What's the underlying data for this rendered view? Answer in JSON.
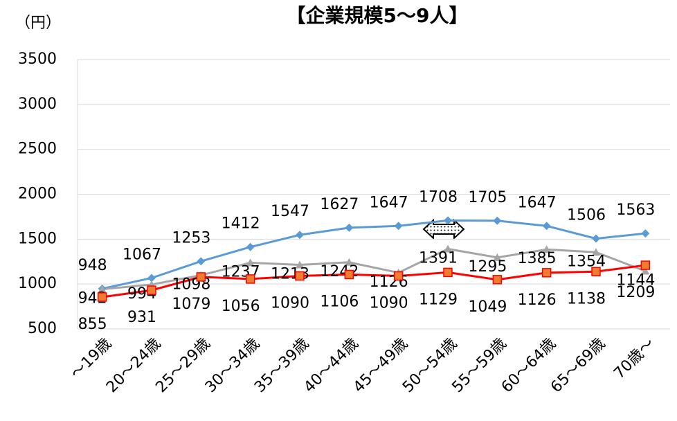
{
  "chart_data": {
    "type": "line",
    "title": "【企業規模5～9人】",
    "y_label": "（円）",
    "categories": [
      "～19歳",
      "20～24歳",
      "25～29歳",
      "30～34歳",
      "35～39歳",
      "40～44歳",
      "45～49歳",
      "50～54歳",
      "55～59歳",
      "60～64歳",
      "65～69歳",
      "70歳～"
    ],
    "series": [
      {
        "color": "#5b9bd5",
        "marker": "diamond",
        "values": [
          948,
          1067,
          1253,
          1412,
          1547,
          1627,
          1647,
          1708,
          1705,
          1647,
          1506,
          1563
        ]
      },
      {
        "color": "#a5a5a5",
        "marker": "triangle",
        "values": [
          942,
          994,
          1098,
          1237,
          1213,
          1242,
          1126,
          1391,
          1295,
          1385,
          1354,
          1144
        ]
      },
      {
        "color": "#ff0000",
        "marker": "square",
        "values": [
          855,
          931,
          1079,
          1056,
          1090,
          1106,
          1090,
          1129,
          1049,
          1126,
          1138,
          1209
        ]
      }
    ],
    "ylim": [
      500,
      3500
    ],
    "yticks": [
      500,
      1000,
      1500,
      2000,
      2500,
      3000,
      3500
    ],
    "grid": true
  }
}
